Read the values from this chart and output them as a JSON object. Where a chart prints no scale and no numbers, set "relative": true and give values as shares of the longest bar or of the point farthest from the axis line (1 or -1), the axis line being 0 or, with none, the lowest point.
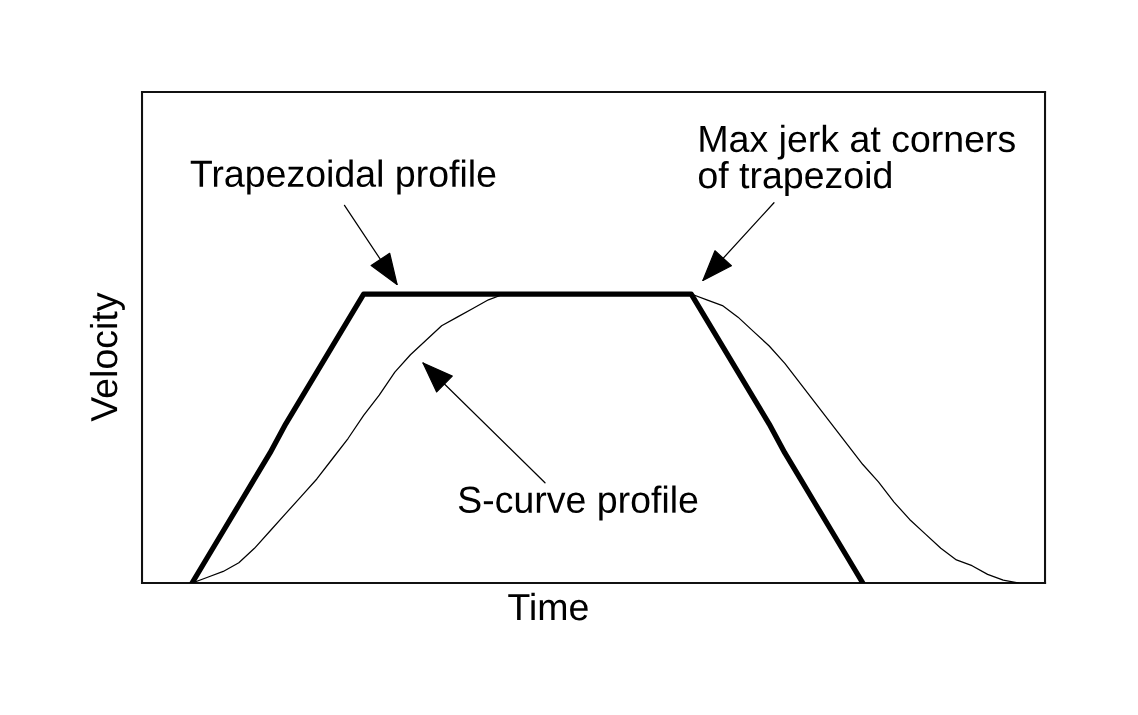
{
  "chart_data": {
    "type": "line",
    "relative": true,
    "xlabel": "Time",
    "ylabel": "Velocity",
    "categories": [
      null,
      null,
      null,
      null,
      null,
      null,
      null,
      null,
      null,
      null,
      null,
      null,
      null,
      null,
      null,
      null,
      null,
      null,
      null,
      null,
      null,
      null,
      null,
      null,
      null,
      null,
      null,
      null,
      null,
      null,
      null,
      null,
      null,
      null,
      null,
      null,
      null,
      null,
      null,
      null,
      null,
      null,
      null,
      null,
      null,
      null,
      null,
      null,
      null,
      null,
      null,
      null,
      null,
      null
    ],
    "series": [
      {
        "color": "#000000",
        "values": [
          0,
          0.09,
          0.18,
          0.27,
          0.36,
          0.45,
          0.55,
          0.64,
          0.73,
          0.82,
          0.91,
          1,
          1,
          1,
          1,
          1,
          1,
          1,
          1,
          1,
          1,
          1,
          1,
          1,
          1,
          1,
          1,
          1,
          1,
          1,
          1,
          1,
          1,
          0.91,
          0.82,
          0.73,
          0.64,
          0.55,
          0.45,
          0.36,
          0.27,
          0.18,
          0.09,
          0,
          null,
          null,
          null,
          null,
          null,
          null,
          null,
          null,
          null,
          null
        ]
      },
      {
        "color": "#000000",
        "values": [
          0,
          0.02,
          0.04,
          0.07,
          0.12,
          0.18,
          0.24,
          0.3,
          0.36,
          0.43,
          0.5,
          0.58,
          0.65,
          0.73,
          0.79,
          0.84,
          0.89,
          0.92,
          0.95,
          0.98,
          1,
          1,
          1,
          1,
          1,
          1,
          1,
          1,
          1,
          1,
          1,
          1,
          1,
          0.98,
          0.96,
          0.92,
          0.87,
          0.82,
          0.76,
          0.69,
          0.62,
          0.55,
          0.48,
          0.41,
          0.35,
          0.28,
          0.22,
          0.17,
          0.12,
          0.08,
          0.06,
          0.03,
          0.01,
          0
        ]
      }
    ],
    "annotations": [
      "Max jerk at corners\nof trapezoid",
      "Trapezoidal profile",
      "S-curve profile"
    ]
  }
}
